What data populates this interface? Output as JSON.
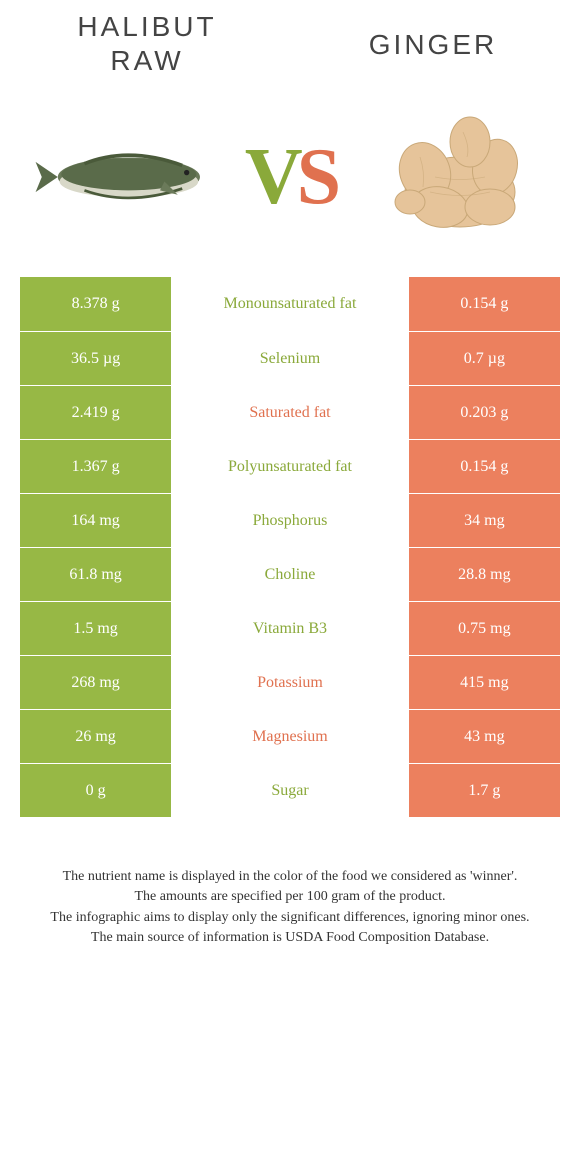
{
  "colors": {
    "left_bg": "#97b845",
    "right_bg": "#ec805e",
    "left_label": "#8aa93a",
    "right_label": "#e0714f",
    "vs_v": "#8aa93a",
    "vs_s": "#e0714f"
  },
  "titles": {
    "left_line1": "Halibut",
    "left_line2": "raw",
    "right": "Ginger"
  },
  "vs": {
    "v": "V",
    "s": "S"
  },
  "rows": [
    {
      "left": "8.378 g",
      "label": "Monounsaturated fat",
      "right": "0.154 g",
      "winner": "left"
    },
    {
      "left": "36.5 µg",
      "label": "Selenium",
      "right": "0.7 µg",
      "winner": "left"
    },
    {
      "left": "2.419 g",
      "label": "Saturated fat",
      "right": "0.203 g",
      "winner": "right"
    },
    {
      "left": "1.367 g",
      "label": "Polyunsaturated fat",
      "right": "0.154 g",
      "winner": "left"
    },
    {
      "left": "164 mg",
      "label": "Phosphorus",
      "right": "34 mg",
      "winner": "left"
    },
    {
      "left": "61.8 mg",
      "label": "Choline",
      "right": "28.8 mg",
      "winner": "left"
    },
    {
      "left": "1.5 mg",
      "label": "Vitamin B3",
      "right": "0.75 mg",
      "winner": "left"
    },
    {
      "left": "268 mg",
      "label": "Potassium",
      "right": "415 mg",
      "winner": "right"
    },
    {
      "left": "26 mg",
      "label": "Magnesium",
      "right": "43 mg",
      "winner": "right"
    },
    {
      "left": "0 g",
      "label": "Sugar",
      "right": "1.7 g",
      "winner": "left"
    }
  ],
  "footnotes": [
    "The nutrient name is displayed in the color of the food we considered as 'winner'.",
    "The amounts are specified per 100 gram of the product.",
    "The infographic aims to display only the significant differences, ignoring minor ones.",
    "The main source of information is USDA Food Composition Database."
  ]
}
